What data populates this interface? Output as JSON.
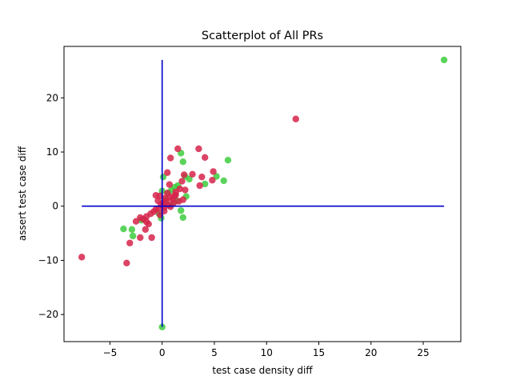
{
  "chart_data": {
    "type": "scatter",
    "title": "Scatterplot of All PRs",
    "xlabel": "test case density diff",
    "ylabel": "assert test case diff",
    "xlim": [
      -9.4,
      28.6
    ],
    "ylim": [
      -25,
      29.5
    ],
    "xticks": [
      -5,
      0,
      5,
      10,
      15,
      20,
      25
    ],
    "yticks": [
      -20,
      -10,
      0,
      10,
      20
    ],
    "xtick_labels": [
      "−5",
      "0",
      "5",
      "10",
      "15",
      "20",
      "25"
    ],
    "ytick_labels": [
      "−20",
      "−10",
      "0",
      "10",
      "20"
    ],
    "grid": false,
    "legend": "none",
    "colors": {
      "green": "#3ecc3e",
      "red": "#d6234a",
      "reference_lines": "#0000cc"
    },
    "reference_lines": [
      {
        "orientation": "horizontal",
        "y": 0,
        "x_from": -7.7,
        "x_to": 27
      },
      {
        "orientation": "vertical",
        "x": 0,
        "y_from": -22.3,
        "y_to": 27
      }
    ],
    "series": [
      {
        "color": "green",
        "points": [
          [
            27,
            27
          ],
          [
            0,
            -22.3
          ],
          [
            6.3,
            8.5
          ],
          [
            5.2,
            5.5
          ],
          [
            5.9,
            4.7
          ],
          [
            4.1,
            4.1
          ],
          [
            1.8,
            9.8
          ],
          [
            2.0,
            8.2
          ],
          [
            2.2,
            5.5
          ],
          [
            2.6,
            5.0
          ],
          [
            2.3,
            1.8
          ],
          [
            1.8,
            -0.8
          ],
          [
            2.0,
            -2.1
          ],
          [
            -3.7,
            -4.2
          ],
          [
            -2.9,
            -4.3
          ],
          [
            -2.8,
            -5.5
          ],
          [
            -2.0,
            -2.6
          ],
          [
            -0.3,
            -1.4
          ],
          [
            0.1,
            5.4
          ],
          [
            0.0,
            2.8
          ],
          [
            0.6,
            2.5
          ],
          [
            0.9,
            3.0
          ],
          [
            1.2,
            3.5
          ],
          [
            1.5,
            3.8
          ],
          [
            0.3,
            1.2
          ],
          [
            -0.1,
            -2.2
          ],
          [
            0.2,
            0.4
          ],
          [
            1.4,
            1.0
          ],
          [
            0.9,
            0.3
          ]
        ]
      },
      {
        "color": "red",
        "points": [
          [
            12.8,
            16.1
          ],
          [
            3.5,
            10.6
          ],
          [
            1.5,
            10.6
          ],
          [
            4.1,
            9.0
          ],
          [
            0.8,
            8.9
          ],
          [
            4.9,
            6.4
          ],
          [
            3.8,
            5.4
          ],
          [
            2.9,
            5.9
          ],
          [
            2.1,
            5.8
          ],
          [
            0.5,
            6.2
          ],
          [
            4.8,
            4.8
          ],
          [
            3.6,
            3.8
          ],
          [
            1.9,
            4.6
          ],
          [
            0.7,
            4.0
          ],
          [
            1.7,
            3.2
          ],
          [
            2.2,
            3.0
          ],
          [
            1.3,
            2.6
          ],
          [
            0.5,
            2.4
          ],
          [
            -0.6,
            2.0
          ],
          [
            -0.2,
            1.9
          ],
          [
            0.3,
            1.5
          ],
          [
            0.8,
            1.7
          ],
          [
            1.2,
            1.9
          ],
          [
            1.0,
            1.3
          ],
          [
            0.4,
            0.9
          ],
          [
            0.1,
            0.6
          ],
          [
            -0.1,
            0.3
          ],
          [
            0.6,
            0.2
          ],
          [
            0.2,
            -0.2
          ],
          [
            -0.3,
            -0.4
          ],
          [
            -0.6,
            -0.6
          ],
          [
            -0.8,
            -1.0
          ],
          [
            -1.1,
            -1.4
          ],
          [
            -1.5,
            -1.9
          ],
          [
            -1.8,
            -2.4
          ],
          [
            -2.1,
            -2.1
          ],
          [
            -2.5,
            -2.8
          ],
          [
            -1.5,
            -2.9
          ],
          [
            -1.3,
            -3.3
          ],
          [
            -1.6,
            -4.3
          ],
          [
            -2.1,
            -5.8
          ],
          [
            -1.0,
            -5.8
          ],
          [
            -3.4,
            -10.5
          ],
          [
            -3.1,
            -6.8
          ],
          [
            -7.7,
            -9.4
          ],
          [
            1.6,
            0.9
          ],
          [
            2.0,
            1.2
          ],
          [
            1.1,
            0.6
          ],
          [
            0.8,
            -0.1
          ],
          [
            -0.4,
            1.0
          ],
          [
            0.2,
            -0.9
          ],
          [
            -0.2,
            -1.6
          ],
          [
            1.3,
            2.1
          ]
        ]
      }
    ]
  }
}
